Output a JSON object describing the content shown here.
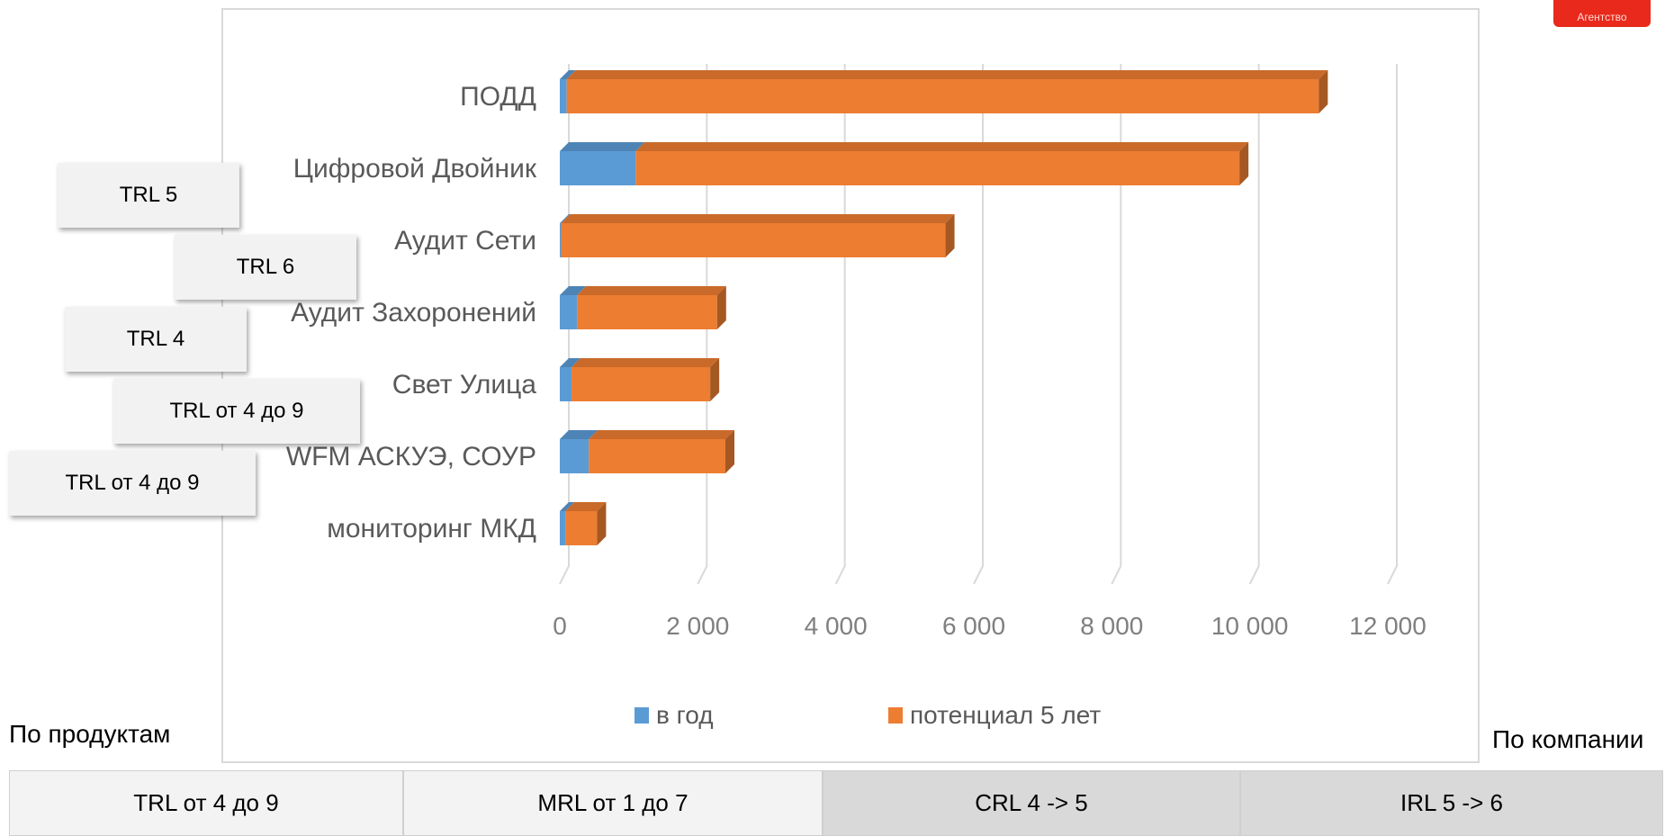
{
  "chart_data": {
    "type": "bar",
    "orientation": "horizontal",
    "stacked": true,
    "style": "3d",
    "categories": [
      "ПОДД",
      "Цифровой Двойник",
      "Аудит Сети",
      "Аудит Захоронений",
      "Свет Улица",
      "WFM АСКУЭ, СОУР",
      "мониторинг МКД"
    ],
    "series": [
      {
        "name": "в год",
        "color": "#5b9bd5",
        "values": [
          100,
          1100,
          20,
          250,
          170,
          420,
          80
        ]
      },
      {
        "name": "потенциал 5 лет",
        "color": "#ed7d31",
        "values": [
          10900,
          8750,
          5570,
          2030,
          2010,
          1980,
          460
        ]
      }
    ],
    "xlim": [
      0,
      12000
    ],
    "xticks": [
      0,
      2000,
      4000,
      6000,
      8000,
      10000,
      12000
    ],
    "xtick_labels": [
      "0",
      "2 000",
      "4 000",
      "6 000",
      "8 000",
      "10 000",
      "12 000"
    ],
    "grid": true,
    "legend": "bottom"
  },
  "trl_badges": [
    {
      "label": "TRL 5",
      "category": "Цифровой Двойник"
    },
    {
      "label": "TRL 6",
      "category": "Аудит Сети"
    },
    {
      "label": "TRL 4",
      "category": "Аудит Захоронений"
    },
    {
      "label": "TRL от 4 до 9",
      "category": "Свет Улица"
    },
    {
      "label": "TRL от 4 до 9",
      "category": "WFM АСКУЭ, СОУР"
    }
  ],
  "left_label": "По продуктам",
  "right_label": "По компании",
  "logo_text": "Агентство",
  "bottom_bar": [
    {
      "label": "TRL от 4 до 9"
    },
    {
      "label": "MRL от 1 до 7"
    },
    {
      "label": "CRL  4 -> 5"
    },
    {
      "label": "IRL 5 -> 6"
    }
  ]
}
